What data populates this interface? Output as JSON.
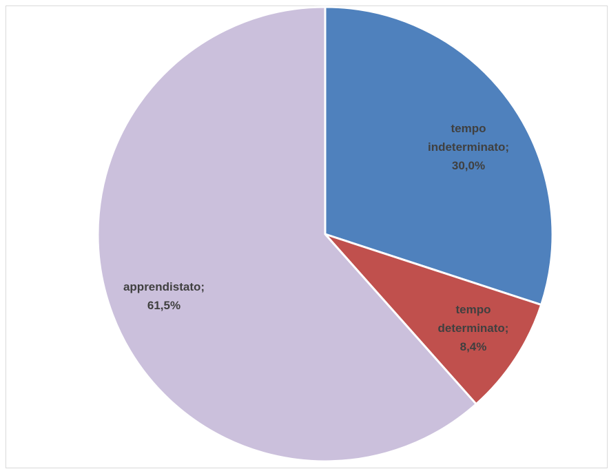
{
  "chart_data": {
    "type": "pie",
    "title": "",
    "categories": [
      "tempo indeterminato",
      "tempo determinato",
      "apprendistato"
    ],
    "values": [
      30.0,
      8.4,
      61.5
    ],
    "colors": [
      "#4F81BD",
      "#C0504D",
      "#CBC0DC"
    ],
    "labels": [
      {
        "lines": [
          "tempo",
          "indeterminato;",
          "30,0%"
        ]
      },
      {
        "lines": [
          "tempo",
          "determinato;",
          "8,4%"
        ]
      },
      {
        "lines": [
          "apprendistato;",
          "61,5%"
        ]
      }
    ],
    "start_angle": "12 o'clock",
    "direction": "clockwise",
    "legend": "none"
  }
}
